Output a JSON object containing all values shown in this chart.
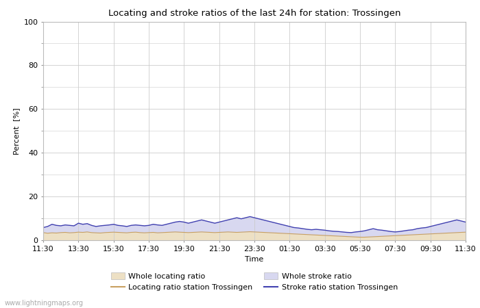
{
  "title": "Locating and stroke ratios of the last 24h for station: Trossingen",
  "xlabel": "Time",
  "ylabel": "Percent  [%]",
  "yticks": [
    0,
    20,
    40,
    60,
    80,
    100
  ],
  "yminor": [
    10,
    30,
    50,
    70,
    90
  ],
  "ylim": [
    0,
    100
  ],
  "xtick_labels": [
    "11:30",
    "13:30",
    "15:30",
    "17:30",
    "19:30",
    "21:30",
    "23:30",
    "01:30",
    "03:30",
    "05:30",
    "07:30",
    "09:30",
    "11:30"
  ],
  "background_color": "#ffffff",
  "plot_bg_color": "#ffffff",
  "grid_color": "#cccccc",
  "fill_locating_color": "#ede0c4",
  "fill_stroke_color": "#d8d8f0",
  "line_locating_color": "#c8a060",
  "line_stroke_color": "#4040b0",
  "watermark": "www.lightningmaps.org",
  "legend_row1": [
    {
      "label": "Whole locating ratio",
      "type": "fill",
      "color": "#ede0c4"
    },
    {
      "label": "Locating ratio station Trossingen",
      "type": "line",
      "color": "#c8a060"
    }
  ],
  "legend_row2": [
    {
      "label": "Whole stroke ratio",
      "type": "fill",
      "color": "#d8d8f0"
    },
    {
      "label": "Stroke ratio station Trossingen",
      "type": "line",
      "color": "#4040b0"
    }
  ],
  "n_points": 97,
  "whole_locating": [
    3.5,
    3.2,
    3.4,
    3.3,
    3.5,
    3.6,
    3.4,
    3.5,
    3.7,
    3.6,
    3.8,
    3.5,
    3.4,
    3.3,
    3.5,
    3.6,
    3.7,
    3.6,
    3.5,
    3.4,
    3.6,
    3.7,
    3.5,
    3.4,
    3.5,
    3.6,
    3.4,
    3.5,
    3.6,
    3.7,
    3.8,
    3.7,
    3.6,
    3.5,
    3.6,
    3.7,
    3.8,
    3.7,
    3.6,
    3.5,
    3.6,
    3.7,
    3.8,
    3.7,
    3.6,
    3.7,
    3.8,
    3.9,
    3.8,
    3.7,
    3.6,
    3.5,
    3.4,
    3.3,
    3.2,
    3.1,
    3.0,
    2.9,
    2.8,
    2.7,
    2.6,
    2.5,
    2.4,
    2.3,
    2.2,
    2.1,
    2.0,
    1.9,
    1.8,
    1.7,
    1.6,
    1.5,
    1.4,
    1.4,
    1.5,
    1.6,
    1.7,
    1.8,
    1.9,
    2.0,
    2.1,
    2.2,
    2.3,
    2.4,
    2.5,
    2.6,
    2.7,
    2.8,
    2.9,
    3.0,
    3.1,
    3.2,
    3.3,
    3.4,
    3.5,
    3.6,
    3.7
  ],
  "whole_stroke": [
    6.0,
    6.5,
    7.5,
    7.0,
    6.8,
    7.2,
    7.0,
    6.8,
    8.0,
    7.5,
    7.8,
    7.0,
    6.5,
    6.8,
    7.0,
    7.2,
    7.5,
    7.0,
    6.8,
    6.5,
    7.0,
    7.2,
    7.0,
    6.8,
    7.0,
    7.5,
    7.2,
    7.0,
    7.5,
    8.0,
    8.5,
    8.8,
    8.5,
    8.0,
    8.5,
    9.0,
    9.5,
    9.0,
    8.5,
    8.0,
    8.5,
    9.0,
    9.5,
    10.0,
    10.5,
    10.0,
    10.5,
    11.0,
    10.5,
    10.0,
    9.5,
    9.0,
    8.5,
    8.0,
    7.5,
    7.0,
    6.5,
    6.0,
    5.8,
    5.5,
    5.2,
    5.0,
    5.2,
    5.0,
    4.8,
    4.5,
    4.3,
    4.2,
    4.0,
    3.8,
    3.7,
    4.0,
    4.2,
    4.5,
    5.0,
    5.5,
    5.0,
    4.8,
    4.5,
    4.2,
    4.0,
    4.2,
    4.5,
    4.8,
    5.0,
    5.5,
    5.8,
    6.0,
    6.5,
    7.0,
    7.5,
    8.0,
    8.5,
    9.0,
    9.5,
    9.0,
    8.5
  ],
  "locating_ratio_station": [
    3.5,
    3.2,
    3.4,
    3.3,
    3.5,
    3.6,
    3.4,
    3.5,
    3.7,
    3.6,
    3.8,
    3.5,
    3.4,
    3.3,
    3.5,
    3.6,
    3.7,
    3.6,
    3.5,
    3.4,
    3.6,
    3.7,
    3.5,
    3.4,
    3.5,
    3.6,
    3.4,
    3.5,
    3.6,
    3.7,
    3.8,
    3.7,
    3.6,
    3.5,
    3.6,
    3.7,
    3.8,
    3.7,
    3.6,
    3.5,
    3.6,
    3.7,
    3.8,
    3.7,
    3.6,
    3.7,
    3.8,
    3.9,
    3.8,
    3.7,
    3.6,
    3.5,
    3.4,
    3.3,
    3.2,
    3.1,
    3.0,
    2.9,
    2.8,
    2.7,
    2.6,
    2.5,
    2.4,
    2.3,
    2.2,
    2.1,
    2.0,
    1.9,
    1.8,
    1.7,
    1.6,
    1.5,
    1.4,
    1.4,
    1.5,
    1.6,
    1.7,
    1.8,
    1.9,
    2.0,
    2.1,
    2.2,
    2.3,
    2.4,
    2.5,
    2.6,
    2.7,
    2.8,
    2.9,
    3.0,
    3.1,
    3.2,
    3.3,
    3.4,
    3.5,
    3.6,
    3.7
  ],
  "stroke_ratio_station": [
    5.8,
    6.3,
    7.3,
    6.8,
    6.6,
    7.0,
    6.8,
    6.6,
    7.8,
    7.3,
    7.6,
    6.8,
    6.3,
    6.6,
    6.8,
    7.0,
    7.3,
    6.8,
    6.6,
    6.3,
    6.8,
    7.0,
    6.8,
    6.6,
    6.8,
    7.3,
    7.0,
    6.8,
    7.3,
    7.8,
    8.3,
    8.6,
    8.3,
    7.8,
    8.3,
    8.8,
    9.3,
    8.8,
    8.3,
    7.8,
    8.3,
    8.8,
    9.3,
    9.8,
    10.3,
    9.8,
    10.3,
    10.8,
    10.3,
    9.8,
    9.3,
    8.8,
    8.3,
    7.8,
    7.3,
    6.8,
    6.3,
    5.8,
    5.6,
    5.3,
    5.0,
    4.8,
    5.0,
    4.8,
    4.6,
    4.3,
    4.1,
    4.0,
    3.8,
    3.6,
    3.5,
    3.8,
    4.0,
    4.3,
    4.8,
    5.3,
    4.8,
    4.6,
    4.3,
    4.0,
    3.8,
    4.0,
    4.3,
    4.6,
    4.8,
    5.3,
    5.6,
    5.8,
    6.3,
    6.8,
    7.3,
    7.8,
    8.3,
    8.8,
    9.3,
    8.8,
    8.3
  ]
}
